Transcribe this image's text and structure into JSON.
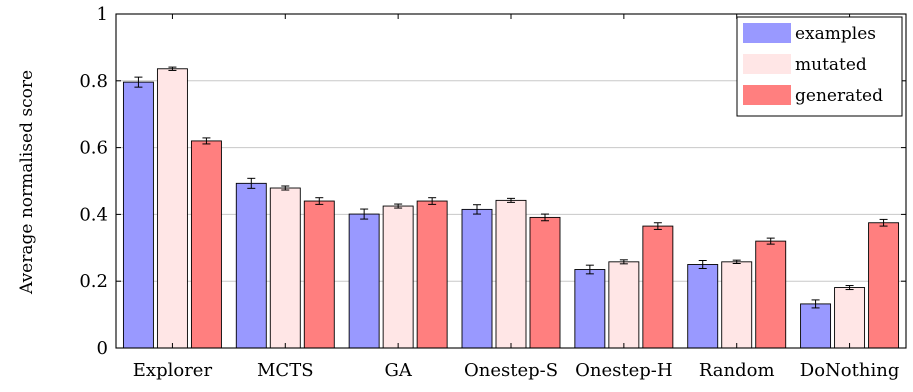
{
  "chart_data": {
    "type": "bar",
    "title": "",
    "xlabel": "",
    "ylabel": "Average normalised score",
    "ylim": [
      0,
      1
    ],
    "yticks": [
      0,
      0.2,
      0.4,
      0.6,
      0.8,
      1
    ],
    "ytick_labels": [
      "0",
      "0.2",
      "0.4",
      "0.6",
      "0.8",
      "1"
    ],
    "grid": "horizontal",
    "legend_position": "top-right",
    "categories": [
      "Explorer",
      "MCTS",
      "GA",
      "Onestep-S",
      "Onestep-H",
      "Random",
      "DoNothing"
    ],
    "series": [
      {
        "name": "examples",
        "color": "#9999ff",
        "values": [
          0.796,
          0.493,
          0.401,
          0.415,
          0.235,
          0.25,
          0.132
        ],
        "errors": [
          0.015,
          0.015,
          0.015,
          0.014,
          0.013,
          0.012,
          0.012
        ]
      },
      {
        "name": "mutated",
        "color": "#ffe6e6",
        "values": [
          0.836,
          0.479,
          0.425,
          0.442,
          0.258,
          0.258,
          0.181
        ],
        "errors": [
          0.005,
          0.006,
          0.006,
          0.006,
          0.006,
          0.005,
          0.006
        ]
      },
      {
        "name": "generated",
        "color": "#ff7f7f",
        "values": [
          0.62,
          0.44,
          0.44,
          0.391,
          0.365,
          0.32,
          0.375
        ],
        "errors": [
          0.009,
          0.01,
          0.01,
          0.01,
          0.01,
          0.009,
          0.01
        ]
      }
    ]
  }
}
